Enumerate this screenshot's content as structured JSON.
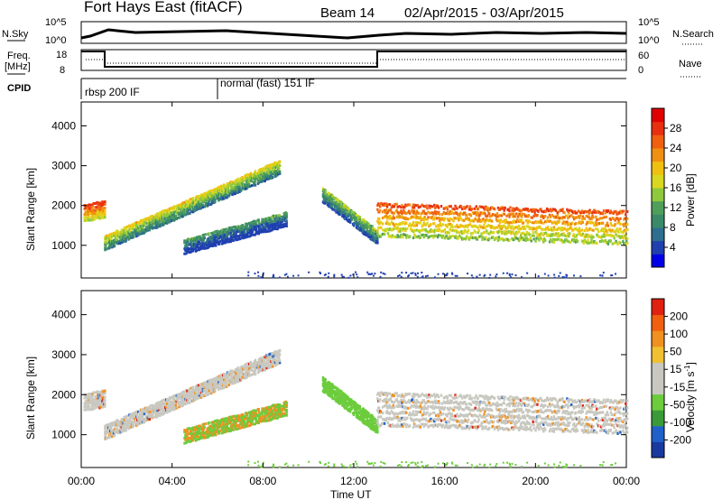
{
  "header": {
    "site": "Fort Hays East (fitACF)",
    "beam": "Beam 14",
    "dates": "02/Apr/2015 - 03/Apr/2015"
  },
  "top_labels": {
    "nsky": "N.Sky",
    "nsky_ticks": [
      "10^5",
      "10^0"
    ],
    "nsearch": "N.Search",
    "nsearch_ticks": [
      "10^5",
      "10^0"
    ],
    "freq": "Freq.",
    "freq_unit": "[MHz]",
    "freq_ticks": [
      "18",
      "8"
    ],
    "nave": "Nave",
    "nave_ticks": [
      "60",
      "0"
    ],
    "cpid": "CPID",
    "cpid_modes": [
      "rbsp 200 IF",
      "normal (fast) 151 IF"
    ]
  },
  "axes": {
    "xlabel": "Time UT",
    "xticks": [
      "00:00",
      "04:00",
      "08:00",
      "12:00",
      "16:00",
      "20:00",
      "00:00"
    ],
    "ylabel_top": "Slant Range [km]",
    "ylabel_bottom": "Slant Range [km]",
    "yticks": [
      "4000",
      "3000",
      "2000",
      "1000"
    ]
  },
  "colorbars": {
    "power": {
      "label": "Power [dB]",
      "ticks": [
        "28",
        "24",
        "20",
        "16",
        "12",
        "8",
        "4"
      ],
      "colors": [
        "#0000e6",
        "#2040b0",
        "#2e6e8e",
        "#3a8a6a",
        "#4f9e5a",
        "#8ec83c",
        "#d8d820",
        "#f0c010",
        "#f09010",
        "#f06010",
        "#e83010",
        "#e00000"
      ]
    },
    "velocity": {
      "label": "Velocity [m s^-1]",
      "label_main": "Velocity [m s",
      "label_sup": "-1",
      "label_end": "]",
      "ticks": [
        "200",
        "100",
        "50",
        "15",
        "-15",
        "-50",
        "-100",
        "-200"
      ],
      "colors": [
        "#1a3aa0",
        "#2060c8",
        "#3a9a3a",
        "#6ccc3c",
        "#c8c8c0",
        "#c8c8c0",
        "#f0c030",
        "#f09020",
        "#f06010",
        "#e02010"
      ]
    }
  },
  "chart_data": {
    "type": "heatmap",
    "title": "Fort Hays East (fitACF) Beam 14 02/Apr/2015 - 03/Apr/2015",
    "x_range_hours": [
      0,
      24
    ],
    "y_range_km": [
      180,
      4600
    ],
    "xlabel": "Time UT",
    "ylabel": "Slant Range [km]",
    "cpid_segments": [
      {
        "label": "rbsp 200 IF",
        "start_hour": 0,
        "end_hour": 6
      },
      {
        "label": "normal (fast) 151 IF",
        "start_hour": 6,
        "end_hour": 24
      }
    ],
    "frequency_mhz": [
      {
        "start_hour": 0,
        "end_hour": 1,
        "value": 17
      },
      {
        "start_hour": 1,
        "end_hour": 13,
        "value": 10
      },
      {
        "start_hour": 13,
        "end_hour": 24,
        "value": 17
      }
    ],
    "power_scatter_features": [
      {
        "start_hour": 0.1,
        "end_hour": 1.0,
        "range_start_km": 1850,
        "range_end_km": 1950,
        "power_db": 24
      },
      {
        "start_hour": 1.0,
        "end_hour": 8.7,
        "range_start_km": 1100,
        "range_end_km": 3000,
        "power_db": 14
      },
      {
        "start_hour": 4.5,
        "end_hour": 9.0,
        "range_start_km": 1000,
        "range_end_km": 1700,
        "power_db": 6
      },
      {
        "start_hour": 10.6,
        "end_hour": 13.0,
        "range_start_km": 2300,
        "range_end_km": 1250,
        "power_db": 10
      },
      {
        "start_hour": 13.0,
        "end_hour": 24.0,
        "range_start_km": 1700,
        "range_end_km": 1500,
        "power_db": 22
      }
    ]
  }
}
